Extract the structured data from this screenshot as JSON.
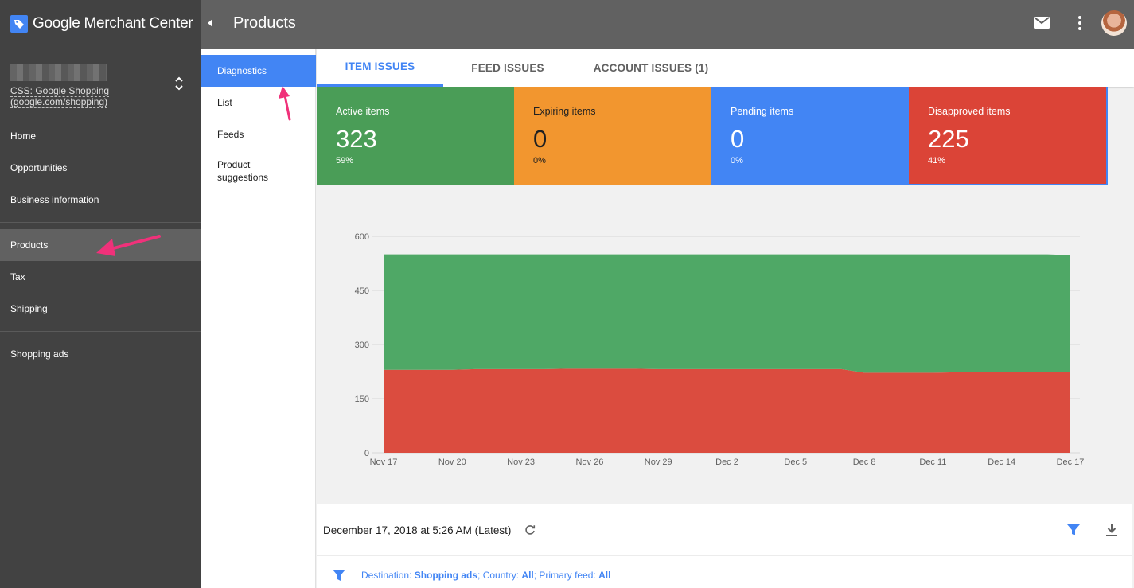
{
  "app": {
    "name": "Google Merchant Center"
  },
  "account": {
    "subtitle_line1": "CSS: Google Shopping",
    "subtitle_line2": "(google.com/shopping)"
  },
  "sidebar": {
    "items": [
      {
        "label": "Home"
      },
      {
        "label": "Opportunities"
      },
      {
        "label": "Business information"
      },
      {
        "label": "Products"
      },
      {
        "label": "Tax"
      },
      {
        "label": "Shipping"
      },
      {
        "label": "Shopping ads"
      }
    ]
  },
  "header": {
    "title": "Products"
  },
  "subnav": {
    "items": [
      {
        "label": "Diagnostics"
      },
      {
        "label": "List"
      },
      {
        "label": "Feeds"
      },
      {
        "label": "Product suggestions"
      }
    ]
  },
  "tabs": [
    {
      "label": "ITEM ISSUES"
    },
    {
      "label": "FEED ISSUES"
    },
    {
      "label": "ACCOUNT ISSUES (1)"
    }
  ],
  "stats": [
    {
      "label": "Active items",
      "value": "323",
      "pct": "59%",
      "color": "#4a9d57"
    },
    {
      "label": "Expiring items",
      "value": "0",
      "pct": "0%",
      "color": "#f2962f"
    },
    {
      "label": "Pending items",
      "value": "0",
      "pct": "0%",
      "color": "#4285f4"
    },
    {
      "label": "Disapproved items",
      "value": "225",
      "pct": "41%",
      "color": "#db4437"
    }
  ],
  "chart_data": {
    "type": "area",
    "stacked": true,
    "x": [
      "Nov 17",
      "Nov 18",
      "Nov 19",
      "Nov 20",
      "Nov 21",
      "Nov 22",
      "Nov 23",
      "Nov 24",
      "Nov 25",
      "Nov 26",
      "Nov 27",
      "Nov 28",
      "Nov 29",
      "Nov 30",
      "Dec 1",
      "Dec 2",
      "Dec 3",
      "Dec 4",
      "Dec 5",
      "Dec 6",
      "Dec 7",
      "Dec 8",
      "Dec 9",
      "Dec 10",
      "Dec 11",
      "Dec 12",
      "Dec 13",
      "Dec 14",
      "Dec 15",
      "Dec 16",
      "Dec 17"
    ],
    "xticks": [
      "Nov 17",
      "Nov 20",
      "Nov 23",
      "Nov 26",
      "Nov 29",
      "Dec 2",
      "Dec 5",
      "Dec 8",
      "Dec 11",
      "Dec 14",
      "Dec 17"
    ],
    "yticks": [
      0,
      150,
      300,
      450,
      600
    ],
    "ylim": [
      0,
      600
    ],
    "series": [
      {
        "values": [
          230,
          230,
          230,
          230,
          232,
          232,
          232,
          232,
          233,
          233,
          233,
          233,
          232,
          232,
          232,
          232,
          232,
          232,
          232,
          232,
          232,
          222,
          222,
          222,
          222,
          223,
          223,
          223,
          224,
          225,
          225
        ],
        "color": "#db4c3f"
      },
      {
        "values": [
          320,
          320,
          320,
          320,
          318,
          318,
          318,
          318,
          317,
          317,
          317,
          317,
          318,
          318,
          318,
          318,
          318,
          318,
          318,
          318,
          318,
          328,
          328,
          328,
          328,
          327,
          327,
          327,
          326,
          325,
          323
        ],
        "color": "#4fa866"
      }
    ],
    "grid": true
  },
  "footer": {
    "timestamp": "December 17, 2018 at 5:26 AM (Latest)",
    "filter_prefix_1": "Destination: ",
    "filter_value_1": "Shopping ads",
    "filter_prefix_2": "; Country: ",
    "filter_value_2": "All",
    "filter_prefix_3": "; Primary feed: ",
    "filter_value_3": "All"
  }
}
